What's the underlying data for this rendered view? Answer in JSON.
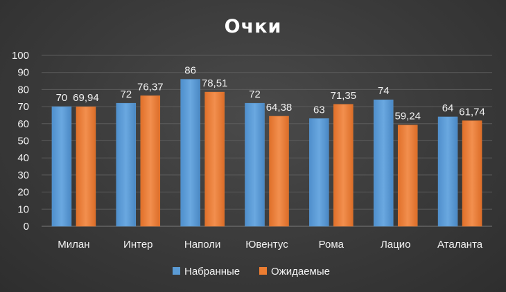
{
  "chart_data": {
    "type": "bar",
    "title": "Очки",
    "categories": [
      "Милан",
      "Интер",
      "Наполи",
      "Ювентус",
      "Рома",
      "Лацио",
      "Аталанта"
    ],
    "series": [
      {
        "name": "Набранные",
        "values": [
          70,
          72,
          86,
          72,
          63,
          74,
          64
        ],
        "labels": [
          "70",
          "72",
          "86",
          "72",
          "63",
          "74",
          "64"
        ],
        "color": "#5b9bd5"
      },
      {
        "name": "Ожидаемые",
        "values": [
          69.94,
          76.37,
          78.51,
          64.38,
          71.35,
          59.24,
          61.74
        ],
        "labels": [
          "69,94",
          "76,37",
          "78,51",
          "64,38",
          "71,35",
          "59,24",
          "61,74"
        ],
        "color": "#ed7d31"
      }
    ],
    "ylim": [
      0,
      100
    ],
    "yticks": [
      0,
      10,
      20,
      30,
      40,
      50,
      60,
      70,
      80,
      90,
      100
    ],
    "grid": true,
    "legend_position": "bottom"
  }
}
